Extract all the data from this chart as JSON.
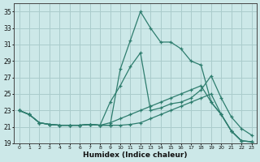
{
  "xlabel": "Humidex (Indice chaleur)",
  "bg_color": "#cce8e8",
  "grid_color": "#aacccc",
  "line_color": "#2e7d6e",
  "xlim": [
    -0.5,
    23.5
  ],
  "ylim": [
    19,
    36
  ],
  "yticks": [
    19,
    21,
    23,
    25,
    27,
    29,
    31,
    33,
    35
  ],
  "xticks": [
    0,
    1,
    2,
    3,
    4,
    5,
    6,
    7,
    8,
    9,
    10,
    11,
    12,
    13,
    14,
    15,
    16,
    17,
    18,
    19,
    20,
    21,
    22,
    23
  ],
  "line1_x": [
    0,
    1,
    2,
    3,
    4,
    5,
    6,
    7,
    8,
    9,
    10,
    11,
    12,
    13,
    14,
    15,
    16,
    17,
    18,
    19,
    20,
    21,
    22,
    23
  ],
  "line1_y": [
    23.0,
    22.5,
    21.5,
    21.3,
    21.2,
    21.2,
    21.2,
    21.3,
    21.2,
    21.2,
    28.0,
    31.5,
    35.0,
    33.0,
    31.3,
    31.3,
    30.5,
    29.0,
    28.5,
    24.0,
    22.5,
    20.5,
    19.3,
    19.2
  ],
  "line2_x": [
    0,
    1,
    2,
    3,
    4,
    5,
    6,
    7,
    8,
    9,
    10,
    11,
    12,
    13,
    14,
    15,
    16,
    17,
    18,
    19,
    20,
    21,
    22,
    23
  ],
  "line2_y": [
    23.0,
    22.5,
    21.5,
    21.3,
    21.2,
    21.2,
    21.2,
    21.3,
    21.2,
    24.0,
    26.0,
    28.3,
    30.0,
    23.0,
    23.3,
    23.8,
    24.0,
    24.5,
    25.5,
    27.2,
    24.5,
    22.2,
    20.8,
    20.0
  ],
  "line3_x": [
    0,
    1,
    2,
    3,
    4,
    5,
    6,
    7,
    8,
    9,
    10,
    11,
    12,
    13,
    14,
    15,
    16,
    17,
    18,
    19,
    20,
    21,
    22,
    23
  ],
  "line3_y": [
    23.0,
    22.5,
    21.5,
    21.3,
    21.2,
    21.2,
    21.2,
    21.3,
    21.2,
    21.5,
    22.0,
    22.5,
    23.0,
    23.5,
    24.0,
    24.5,
    25.0,
    25.5,
    26.0,
    24.0,
    22.5,
    20.5,
    19.3,
    19.2
  ],
  "line4_x": [
    0,
    1,
    2,
    3,
    4,
    5,
    6,
    7,
    8,
    9,
    10,
    11,
    12,
    13,
    14,
    15,
    16,
    17,
    18,
    19,
    20,
    21,
    22,
    23
  ],
  "line4_y": [
    23.0,
    22.5,
    21.5,
    21.3,
    21.2,
    21.2,
    21.2,
    21.3,
    21.2,
    21.2,
    21.2,
    21.3,
    21.5,
    22.0,
    22.5,
    23.0,
    23.5,
    24.0,
    24.5,
    25.0,
    22.5,
    20.5,
    19.3,
    19.2
  ]
}
